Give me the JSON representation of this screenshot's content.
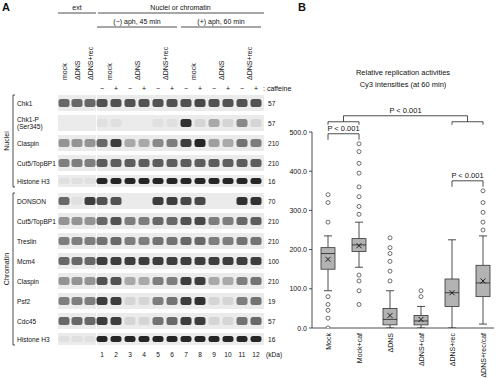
{
  "panel_a": {
    "label": "A",
    "header": {
      "ext": "ext",
      "fraction": "Nuclei or chromatin",
      "conditions": [
        "(−) aph, 45 min",
        "(+) aph, 60 min"
      ]
    },
    "samples": [
      "mock",
      "ΔDNS",
      "ΔDNS+rec"
    ],
    "caffeine": {
      "signs": [
        "−",
        "+"
      ],
      "label": ": caffeine"
    },
    "lane_numbers": [
      1,
      2,
      3,
      4,
      5,
      6,
      7,
      8,
      9,
      10,
      11,
      12
    ],
    "kda_unit": "(kDa)",
    "groups": [
      {
        "name": "Nuclei",
        "blots": [
          {
            "label": "Chk1",
            "kda": 57,
            "ext_bands": [
              0.6,
              0.6,
              0.6
            ],
            "bands": [
              0.7,
              0.7,
              0.7,
              0.7,
              0.7,
              0.7,
              0.7,
              0.75,
              0.7,
              0.7,
              0.7,
              0.7
            ]
          },
          {
            "label": "Chk1-P (Ser345)",
            "kda": 57,
            "ext_bands": [
              0,
              0,
              0
            ],
            "bands": [
              0.05,
              0.05,
              0,
              0,
              0.05,
              0.05,
              0.85,
              0.1,
              0.3,
              0.1,
              0.45,
              0.1
            ]
          },
          {
            "label": "Claspin",
            "kda": 210,
            "ext_bands": [
              0.4,
              0.4,
              0.4
            ],
            "bands": [
              0.6,
              0.8,
              0.3,
              0.3,
              0.45,
              0.5,
              0.8,
              0.9,
              0.35,
              0.3,
              0.55,
              0.5
            ]
          },
          {
            "label": "Cut5/TopBP1",
            "kda": 210,
            "ext_bands": [
              0.5,
              0.5,
              0.5
            ],
            "bands": [
              0.65,
              0.65,
              0.65,
              0.65,
              0.65,
              0.65,
              0.65,
              0.65,
              0.65,
              0.65,
              0.65,
              0.65
            ]
          },
          {
            "label": "Histone H3",
            "kda": 16,
            "ext_bands": [
              0.05,
              0.05,
              0.05
            ],
            "bands": [
              0.9,
              0.9,
              0.9,
              0.9,
              0.9,
              0.9,
              0.9,
              0.9,
              0.9,
              0.9,
              0.9,
              0.9
            ]
          }
        ]
      },
      {
        "name": "Chromatin",
        "blots": [
          {
            "label": "DONSON",
            "kda": 70,
            "ext_bands": [
              0.6,
              0.05,
              0.8
            ],
            "bands": [
              0.7,
              0.7,
              0,
              0,
              0.8,
              0.8,
              0.75,
              0.75,
              0,
              0,
              0.85,
              0.85
            ]
          },
          {
            "label": "Cut5/TopBP1",
            "kda": 210,
            "ext_bands": [
              0.4,
              0.4,
              0.4
            ],
            "bands": [
              0.6,
              0.7,
              0.5,
              0.5,
              0.6,
              0.6,
              0.7,
              0.75,
              0.5,
              0.5,
              0.6,
              0.65
            ]
          },
          {
            "label": "Treslin",
            "kda": 210,
            "ext_bands": [
              0.5,
              0.5,
              0.5
            ],
            "bands": [
              0.55,
              0.6,
              0.5,
              0.5,
              0.55,
              0.55,
              0.6,
              0.6,
              0.5,
              0.5,
              0.55,
              0.55
            ]
          },
          {
            "label": "Mcm4",
            "kda": 100,
            "ext_bands": [
              0.6,
              0.6,
              0.6
            ],
            "bands": [
              0.8,
              0.8,
              0.8,
              0.8,
              0.8,
              0.8,
              0.8,
              0.8,
              0.8,
              0.8,
              0.8,
              0.8
            ]
          },
          {
            "label": "Claspin",
            "kda": 210,
            "ext_bands": [
              0.4,
              0.4,
              0.4
            ],
            "bands": [
              0.7,
              0.7,
              0.3,
              0.3,
              0.5,
              0.5,
              0.8,
              0.8,
              0.3,
              0.3,
              0.5,
              0.55
            ]
          },
          {
            "label": "Psf2",
            "kda": 19,
            "ext_bands": [
              0.5,
              0.5,
              0.5
            ],
            "bands": [
              0.8,
              0.8,
              0.1,
              0.1,
              0.5,
              0.55,
              0.8,
              0.85,
              0.1,
              0.1,
              0.5,
              0.55
            ]
          },
          {
            "label": "Cdc45",
            "kda": 57,
            "ext_bands": [
              0.6,
              0.6,
              0.6
            ],
            "bands": [
              0.8,
              0.8,
              0.1,
              0.1,
              0.55,
              0.6,
              0.8,
              0.8,
              0.1,
              0.1,
              0.55,
              0.6
            ]
          },
          {
            "label": "Histone H3",
            "kda": 16,
            "ext_bands": [
              0.05,
              0.05,
              0.05
            ],
            "bands": [
              0.9,
              0.9,
              0.9,
              0.9,
              0.9,
              0.9,
              0.9,
              0.9,
              0.9,
              0.9,
              0.9,
              0.9
            ]
          }
        ]
      }
    ]
  },
  "panel_b": {
    "label": "B"
  },
  "chart_data": {
    "type": "box",
    "title": "Relative replication activities",
    "subtitle": "Cy3 intensities (at 60 min)",
    "categories": [
      "Mock",
      "Mock+caf",
      "ΔDNS",
      "ΔDNS+caf",
      "ΔDNS+rec",
      "ΔDNS+rec/caf"
    ],
    "color": "#b3b3b3",
    "ylim": [
      0,
      500
    ],
    "yticks": [
      {
        "value": 0,
        "label": "0.0"
      },
      {
        "value": 100,
        "label": "100.0"
      },
      {
        "value": 200,
        "label": "200.0"
      },
      {
        "value": 300,
        "label": "300.0"
      },
      {
        "value": 400,
        "label": "400.0"
      },
      {
        "value": 500,
        "label": "500.0"
      }
    ],
    "grid": false,
    "boxes": [
      {
        "whisker_low": 95,
        "q1": 150,
        "median": 190,
        "q3": 205,
        "whisker_high": 235,
        "mean": 175,
        "outliers": [
          0,
          25,
          45,
          60,
          80,
          270,
          320,
          340
        ]
      },
      {
        "whisker_low": 155,
        "q1": 195,
        "median": 212,
        "q3": 228,
        "whisker_high": 270,
        "mean": 210,
        "outliers": [
          60,
          95,
          120,
          135,
          290,
          310,
          335,
          360,
          395,
          420,
          450,
          470
        ]
      },
      {
        "whisker_low": 0,
        "q1": 8,
        "median": 22,
        "q3": 50,
        "whisker_high": 95,
        "mean": 32,
        "outliers": [
          120,
          145,
          170,
          190,
          205,
          230
        ]
      },
      {
        "whisker_low": 0,
        "q1": 8,
        "median": 18,
        "q3": 32,
        "whisker_high": 55,
        "mean": 22,
        "outliers": [
          80,
          95
        ]
      },
      {
        "whisker_low": 0,
        "q1": 55,
        "median": 90,
        "q3": 125,
        "whisker_high": 225,
        "mean": 90,
        "outliers": []
      },
      {
        "whisker_low": 10,
        "q1": 80,
        "median": 115,
        "q3": 160,
        "whisker_high": 235,
        "mean": 120,
        "outliers": [
          250,
          270,
          295,
          320,
          350
        ]
      }
    ],
    "comparisons": [
      {
        "left": [
          "Mock"
        ],
        "right": [
          "Mock+caf"
        ],
        "label": "P < 0.001"
      },
      {
        "left": [
          "ΔDNS+rec"
        ],
        "right": [
          "ΔDNS+rec/caf"
        ],
        "label": "P < 0.001"
      },
      {
        "left": [
          "Mock",
          "Mock+caf"
        ],
        "right": [
          "ΔDNS+rec",
          "ΔDNS+rec/caf"
        ],
        "label": "P < 0.001"
      }
    ]
  }
}
